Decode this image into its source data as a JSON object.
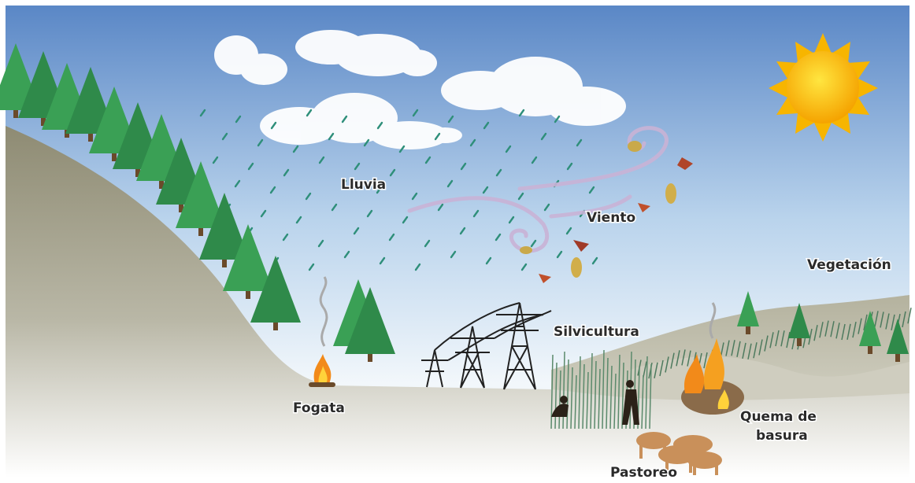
{
  "labels": [
    {
      "lines": [
        "Lluvia"
      ]
    },
    {
      "lines": [
        "Viento"
      ]
    },
    {
      "lines": [
        "Vegetación"
      ]
    },
    {
      "lines": [
        "Silvicultura"
      ]
    },
    {
      "lines": [
        "Fogata"
      ]
    },
    {
      "lines": [
        "Quema de",
        "basura"
      ]
    },
    {
      "lines": [
        "Pastoreo"
      ]
    }
  ]
}
